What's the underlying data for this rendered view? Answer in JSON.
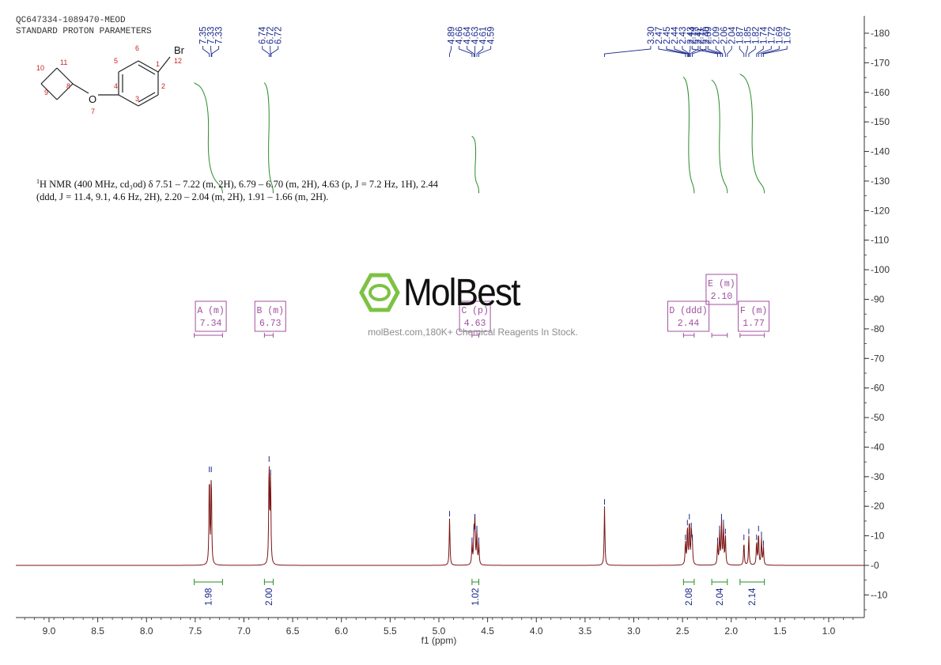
{
  "header": {
    "line1": "QC647334-1089470-MEOD",
    "line2": "STANDARD PROTON PARAMETERS"
  },
  "nmr_description": {
    "prefix": "1",
    "line1": "H NMR (400 MHz, cd₃od) δ 7.51 – 7.22 (m, 2H), 6.79 – 6.70 (m, 2H), 4.63 (p, J = 7.2 Hz, 1H), 2.44",
    "line2": "(ddd, J = 11.4, 9.1, 4.6 Hz, 2H), 2.20 – 2.04 (m, 2H), 1.91 – 1.66 (m, 2H)."
  },
  "watermark": {
    "brand": "MolBest",
    "tagline": "molBest.com,180K+ Chemical Reagents In Stock."
  },
  "molecule": {
    "atoms": [
      {
        "label": "Br",
        "number": "12"
      },
      {
        "label": "O",
        "number": "7"
      }
    ],
    "numbers": [
      "1",
      "2",
      "3",
      "4",
      "5",
      "6",
      "8",
      "9",
      "10",
      "11"
    ]
  },
  "chart_data": {
    "type": "line",
    "title": "",
    "xlabel": "f1 (ppm)",
    "ylabel": "",
    "xlim": [
      9.3,
      0.7
    ],
    "ylim": [
      -16,
      185
    ],
    "x_ticks": [
      "9.0",
      "8.5",
      "8.0",
      "7.5",
      "7.0",
      "6.5",
      "6.0",
      "5.5",
      "5.0",
      "4.5",
      "4.0",
      "3.5",
      "3.0",
      "2.5",
      "2.0",
      "1.5",
      "1.0"
    ],
    "y_ticks": [
      "-10",
      "0",
      "10",
      "20",
      "30",
      "40",
      "50",
      "60",
      "70",
      "80",
      "90",
      "100",
      "110",
      "120",
      "130",
      "140",
      "150",
      "160",
      "170",
      "180"
    ],
    "peaks": [
      {
        "ppm": 7.355,
        "height": 31
      },
      {
        "ppm": 7.335,
        "height": 31
      },
      {
        "ppm": 6.742,
        "height": 34.5
      },
      {
        "ppm": 6.727,
        "height": 30
      },
      {
        "ppm": 4.89,
        "height": 16
      },
      {
        "ppm": 4.66,
        "height": 7
      },
      {
        "ppm": 4.64,
        "height": 11
      },
      {
        "ppm": 4.63,
        "height": 15
      },
      {
        "ppm": 4.61,
        "height": 11
      },
      {
        "ppm": 4.59,
        "height": 7
      },
      {
        "ppm": 3.3,
        "height": 20
      },
      {
        "ppm": 2.47,
        "height": 8
      },
      {
        "ppm": 2.45,
        "height": 13
      },
      {
        "ppm": 2.43,
        "height": 15
      },
      {
        "ppm": 2.41,
        "height": 12
      },
      {
        "ppm": 2.4,
        "height": 8
      },
      {
        "ppm": 2.14,
        "height": 7
      },
      {
        "ppm": 2.12,
        "height": 11
      },
      {
        "ppm": 2.1,
        "height": 15
      },
      {
        "ppm": 2.08,
        "height": 13
      },
      {
        "ppm": 2.06,
        "height": 10
      },
      {
        "ppm": 1.87,
        "height": 8
      },
      {
        "ppm": 1.82,
        "height": 10
      },
      {
        "ppm": 1.74,
        "height": 8
      },
      {
        "ppm": 1.72,
        "height": 11
      },
      {
        "ppm": 1.69,
        "height": 9
      },
      {
        "ppm": 1.67,
        "height": 6
      }
    ],
    "peak_label_groups": [
      {
        "labels": [
          "7.35",
          "7.33",
          "7.33"
        ],
        "target_ppm": [
          7.355,
          7.335,
          7.33
        ]
      },
      {
        "labels": [
          "6.74",
          "6.72",
          "6.72"
        ],
        "target_ppm": [
          6.742,
          6.727,
          6.722
        ]
      },
      {
        "labels": [
          "4.89",
          "4.66",
          "4.64",
          "4.63",
          "4.61",
          "4.59"
        ],
        "target_ppm": [
          4.89,
          4.66,
          4.64,
          4.63,
          4.61,
          4.59
        ]
      },
      {
        "labels": [
          "3.30",
          "2.47",
          "2.45",
          "2.44",
          "2.43",
          "2.43",
          "2.42",
          "2.40"
        ],
        "target_ppm": [
          3.3,
          2.47,
          2.45,
          2.44,
          2.43,
          2.43,
          2.42,
          2.4
        ]
      },
      {
        "labels": [
          "2.14",
          "2.11",
          "2.09",
          "2.09",
          "2.06",
          "2.04",
          "1.87",
          "1.85",
          "1.82",
          "1.74",
          "1.72",
          "1.69",
          "1.67"
        ],
        "target_ppm": [
          2.14,
          2.11,
          2.09,
          2.09,
          2.06,
          2.04,
          1.87,
          1.85,
          1.82,
          1.74,
          1.72,
          1.69,
          1.67
        ]
      }
    ],
    "multiplets": [
      {
        "label": "A (m)",
        "shift": "7.34",
        "center": 7.34,
        "range": [
          7.51,
          7.22
        ]
      },
      {
        "label": "B (m)",
        "shift": "6.73",
        "center": 6.73,
        "range": [
          6.79,
          6.7
        ]
      },
      {
        "label": "C (p)",
        "shift": "4.63",
        "center": 4.63,
        "range": [
          4.66,
          4.59
        ]
      },
      {
        "label": "D (ddd)",
        "shift": "2.44",
        "center": 2.44,
        "range": [
          2.49,
          2.38
        ]
      },
      {
        "label": "E (m)",
        "shift": "2.10",
        "center": 2.1,
        "range": [
          2.2,
          2.04
        ]
      },
      {
        "label": "F (m)",
        "shift": "1.77",
        "center": 1.77,
        "range": [
          1.91,
          1.66
        ]
      }
    ],
    "integrals": [
      {
        "value": "1.98",
        "range": [
          7.51,
          7.22
        ],
        "top": 163
      },
      {
        "value": "2.00",
        "range": [
          6.79,
          6.7
        ],
        "top": 163
      },
      {
        "value": "1.02",
        "range": [
          4.66,
          4.59
        ],
        "top": 145
      },
      {
        "value": "2.08",
        "range": [
          2.49,
          2.38
        ],
        "top": 165
      },
      {
        "value": "2.04",
        "range": [
          2.2,
          2.04
        ],
        "top": 164
      },
      {
        "value": "2.14",
        "range": [
          1.91,
          1.66
        ],
        "top": 166
      }
    ],
    "colors": {
      "spectrum": "#7a1414",
      "peak_labels": "#1a2a8c",
      "integrals": "#2a8c2a",
      "multiplets": "#a050a0",
      "axis": "#333333"
    }
  }
}
